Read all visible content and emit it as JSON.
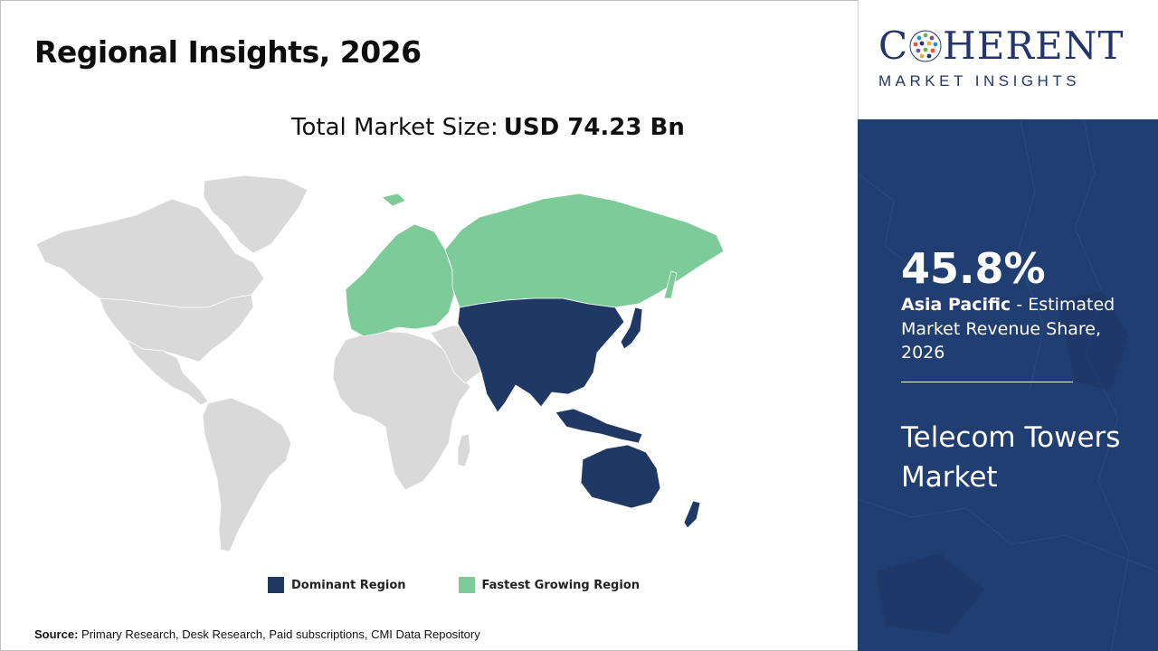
{
  "title": "Regional Insights, 2026",
  "market_size": {
    "label": "Total Market Size:",
    "value": "USD 74.23 Bn"
  },
  "legend": [
    {
      "label": "Dominant Region",
      "color": "#1f3864"
    },
    {
      "label": "Fastest Growing Region",
      "color": "#7ccb98"
    }
  ],
  "source": {
    "label": "Source:",
    "text": "Primary Research, Desk Research, Paid subscriptions, CMI Data Repository"
  },
  "logo": {
    "pre": "C",
    "post": "HERENT",
    "tagline": "MARKET INSIGHTS"
  },
  "highlight": {
    "value": "45.8%",
    "region": "Asia Pacific",
    "description": " - Estimated Market Revenue Share, 2026"
  },
  "market_name": "Telecom Towers Market",
  "colors": {
    "panel": "#213e72",
    "map_base": "#d9d9d9",
    "dominant": "#1f3864",
    "fastest": "#7ccb98",
    "brand": "#23356b"
  }
}
